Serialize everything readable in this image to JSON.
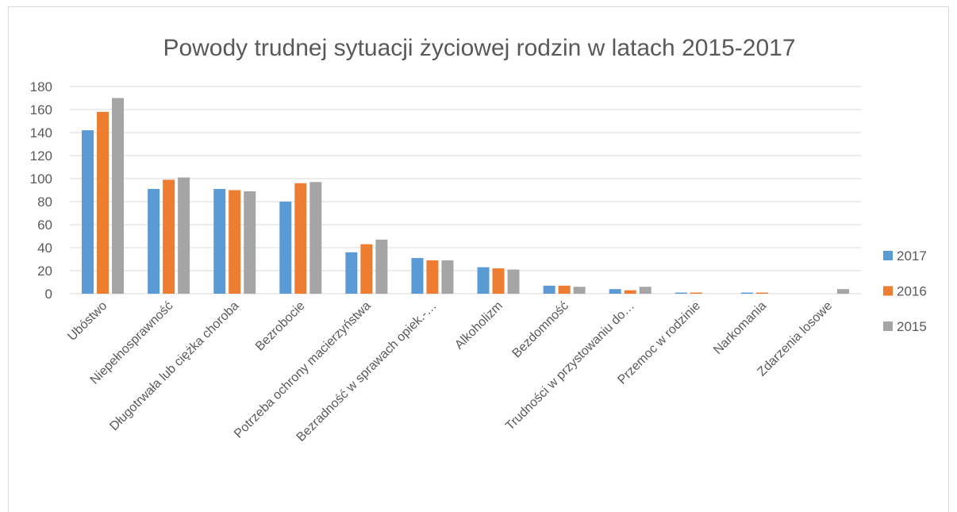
{
  "chart_data": {
    "type": "bar",
    "title": "Powody trudnej sytuacji życiowej rodzin w latach 2015-2017",
    "categories": [
      "Ubóstwo",
      "Niepełnosprawność",
      "Długotrwała lub ciężka choroba",
      "Bezrobocie",
      "Potrzeba ochrony macierzyństwa",
      "Bezradność w sprawach opiek.-…",
      "Alkoholizm",
      "Bezdomność",
      "Trudności w przystowaniu do…",
      "Przemoc w rodzinie",
      "Narkomania",
      "Zdarzenia losowe"
    ],
    "series": [
      {
        "name": "2017",
        "color": "#5b9bd5",
        "values": [
          142,
          91,
          91,
          80,
          36,
          31,
          23,
          7,
          4,
          1,
          1,
          0
        ]
      },
      {
        "name": "2016",
        "color": "#ed7d31",
        "values": [
          158,
          99,
          90,
          96,
          43,
          29,
          22,
          7,
          3,
          1,
          1,
          0
        ]
      },
      {
        "name": "2015",
        "color": "#a5a5a5",
        "values": [
          170,
          101,
          89,
          97,
          47,
          29,
          21,
          6,
          6,
          0,
          0,
          4
        ]
      }
    ],
    "ylim": [
      0,
      180
    ],
    "yticks": [
      0,
      20,
      40,
      60,
      80,
      100,
      120,
      140,
      160,
      180
    ],
    "grid": true,
    "legend": "right"
  }
}
